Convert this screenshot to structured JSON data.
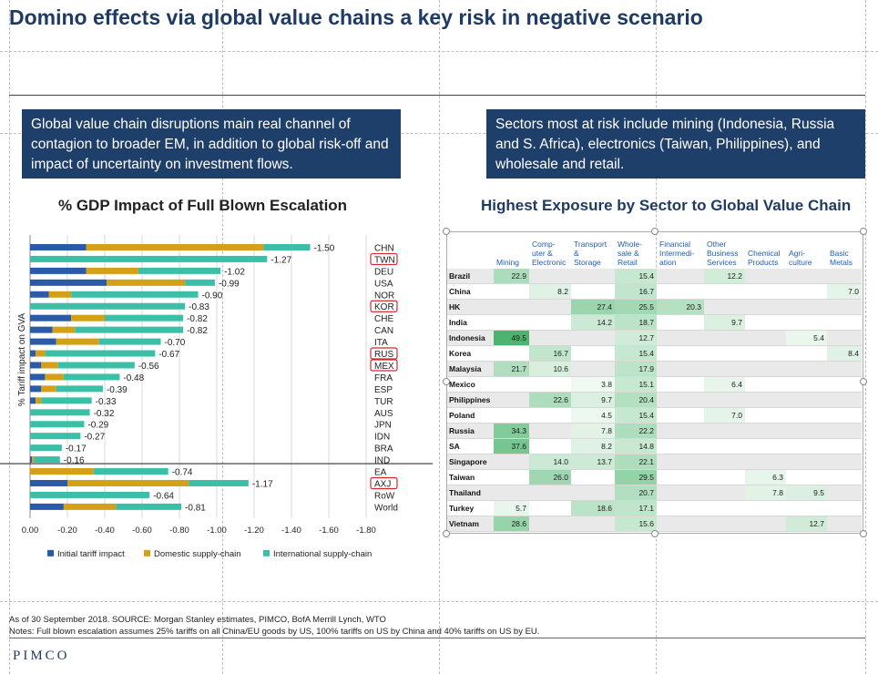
{
  "page_title": "Domino effects via global value chains a key risk in negative scenario",
  "callouts": {
    "left": "Global value chain disruptions main real channel of contagion to broader EM, in addition to global risk-off and impact of uncertainty on investment flows.",
    "right": "Sectors most at risk include mining (Indonesia, Russia and S. Africa), electronics (Taiwan, Philippines), and wholesale and retail."
  },
  "colors": {
    "initial": "#2a5aa8",
    "domestic": "#d4a017",
    "international": "#3cbfa7",
    "highlight_box": "#d9262c"
  },
  "footnotes": {
    "line1": "As of 30 September 2018. SOURCE: Morgan Stanley estimates, PIMCO, BofA Merrill Lynch, WTO",
    "line2": "Notes: Full blown escalation assumes 25% tariffs on all China/EU goods by US, 100% tariffs on US by China and 40% tariffs on US by EU."
  },
  "logo_text": "PIMCO",
  "chart_data": [
    {
      "type": "bar",
      "orientation": "horizontal",
      "stacked": true,
      "title": "% GDP Impact of Full Blown Escalation",
      "ylabel": "% Tariff impact on GVA",
      "xlim": [
        0,
        -1.8
      ],
      "x_ticks": [
        "0.00",
        "-0.20",
        "-0.40",
        "-0.60",
        "-0.80",
        "-1.00",
        "-1.20",
        "-1.40",
        "-1.60",
        "-1.80"
      ],
      "grid": true,
      "legend_position": "bottom",
      "categories": [
        "CHN",
        "TWN",
        "DEU",
        "USA",
        "NOR",
        "KOR",
        "CHE",
        "CAN",
        "ITA",
        "RUS",
        "MEX",
        "FRA",
        "ESP",
        "TUR",
        "AUS",
        "JPN",
        "IDN",
        "BRA",
        "IND",
        "EA",
        "AXJ",
        "RoW",
        "World"
      ],
      "highlighted_categories": [
        "TWN",
        "KOR",
        "RUS",
        "MEX",
        "AXJ"
      ],
      "series": [
        {
          "name": "Initial tariff impact",
          "values": [
            -0.3,
            0.0,
            -0.3,
            -0.41,
            -0.1,
            0.0,
            -0.22,
            -0.12,
            -0.14,
            -0.03,
            -0.06,
            -0.08,
            -0.06,
            -0.03,
            0.0,
            0.0,
            0.0,
            0.0,
            -0.01,
            0.0,
            -0.2,
            0.0,
            -0.18
          ]
        },
        {
          "name": "Domestic supply-chain",
          "values": [
            -0.95,
            0.0,
            -0.28,
            -0.42,
            -0.12,
            0.0,
            -0.18,
            -0.12,
            -0.23,
            -0.05,
            -0.09,
            -0.1,
            -0.08,
            -0.03,
            0.0,
            0.0,
            0.0,
            0.0,
            -0.01,
            -0.34,
            -0.65,
            0.0,
            -0.28
          ]
        },
        {
          "name": "International supply-chain",
          "values": [
            -0.25,
            -1.27,
            -0.44,
            -0.16,
            -0.68,
            -0.83,
            -0.42,
            -0.58,
            -0.33,
            -0.59,
            -0.41,
            -0.3,
            -0.25,
            -0.27,
            -0.32,
            -0.29,
            -0.27,
            -0.17,
            -0.14,
            -0.4,
            -0.32,
            -0.64,
            -0.35
          ]
        }
      ],
      "totals": [
        -1.5,
        -1.27,
        -1.02,
        -0.99,
        -0.9,
        -0.83,
        -0.82,
        -0.82,
        -0.7,
        -0.67,
        -0.56,
        -0.48,
        -0.39,
        -0.33,
        -0.32,
        -0.29,
        -0.27,
        -0.17,
        -0.16,
        -0.74,
        -1.17,
        -0.64,
        -0.81
      ],
      "total_labels": [
        "-1.50",
        "-1.27",
        "-1.02",
        "-0.99",
        "-0.90",
        "-0.83",
        "-0.82",
        "-0.82",
        "-0.70",
        "-0.67",
        "-0.56",
        "-0.48",
        "-0.39",
        "-0.33",
        "-0.32",
        "-0.29",
        "-0.27",
        "-0.17",
        "-0.16",
        "-0.74",
        "-1.17",
        "-0.64",
        "-0.81"
      ]
    },
    {
      "type": "table",
      "title": "Highest Exposure by Sector to Global Value Chain",
      "columns": [
        "Mining",
        "Comp-uter & Electronic",
        "Transport & Storage",
        "Whole-sale & Retail",
        "Financial Intermedi-ation",
        "Other Business Services",
        "Chemical Products",
        "Agri-culture",
        "Basic Metals"
      ],
      "column_lines": [
        [
          "Mining"
        ],
        [
          "Comp-",
          "uter &",
          "Electronic"
        ],
        [
          "Transport",
          "&",
          "Storage"
        ],
        [
          "Whole-",
          "sale &",
          "Retail"
        ],
        [
          "Financial",
          "Intermedi-",
          "ation"
        ],
        [
          "Other",
          "Business",
          "Services"
        ],
        [
          "Chemical",
          "Products"
        ],
        [
          "Agri-",
          "culture"
        ],
        [
          "Basic",
          "Metals"
        ]
      ],
      "rows": [
        {
          "country": "Brazil",
          "values": [
            "22.9",
            "",
            "",
            "15.4",
            "",
            "12.2",
            "",
            "",
            ""
          ]
        },
        {
          "country": "China",
          "values": [
            "",
            "8.2",
            "",
            "16.7",
            "",
            "",
            "",
            "",
            "7.0"
          ]
        },
        {
          "country": "HK",
          "values": [
            "",
            "",
            "27.4",
            "25.5",
            "20.3",
            "",
            "",
            "",
            ""
          ]
        },
        {
          "country": "India",
          "values": [
            "",
            "",
            "14.2",
            "18.7",
            "",
            "9.7",
            "",
            "",
            ""
          ]
        },
        {
          "country": "Indonesia",
          "values": [
            "49.5",
            "",
            "",
            "12.7",
            "",
            "",
            "",
            "5.4",
            ""
          ]
        },
        {
          "country": "Korea",
          "values": [
            "",
            "16.7",
            "",
            "15.4",
            "",
            "",
            "",
            "",
            "8.4"
          ]
        },
        {
          "country": "Malaysia",
          "values": [
            "21.7",
            "10.6",
            "",
            "17.9",
            "",
            "",
            "",
            "",
            ""
          ]
        },
        {
          "country": "Mexico",
          "values": [
            "",
            "",
            "3.8",
            "15.1",
            "",
            "6.4",
            "",
            "",
            ""
          ]
        },
        {
          "country": "Philippines",
          "values": [
            "",
            "22.6",
            "9.7",
            "20.4",
            "",
            "",
            "",
            "",
            ""
          ]
        },
        {
          "country": "Poland",
          "values": [
            "",
            "",
            "4.5",
            "15.4",
            "",
            "7.0",
            "",
            "",
            ""
          ]
        },
        {
          "country": "Russia",
          "values": [
            "34.3",
            "",
            "7.8",
            "22.2",
            "",
            "",
            "",
            "",
            ""
          ]
        },
        {
          "country": "SA",
          "values": [
            "37.6",
            "",
            "8.2",
            "14.8",
            "",
            "",
            "",
            "",
            ""
          ]
        },
        {
          "country": "Singapore",
          "values": [
            "",
            "14.0",
            "13.7",
            "22.1",
            "",
            "",
            "",
            "",
            ""
          ]
        },
        {
          "country": "Taiwan",
          "values": [
            "",
            "26.0",
            "",
            "29.5",
            "",
            "",
            "6.3",
            "",
            ""
          ]
        },
        {
          "country": "Thailand",
          "values": [
            "",
            "",
            "",
            "20.7",
            "",
            "",
            "7.8",
            "9.5",
            ""
          ]
        },
        {
          "country": "Turkey",
          "values": [
            "5.7",
            "",
            "18.6",
            "17.1",
            "",
            "",
            "",
            "",
            ""
          ]
        },
        {
          "country": "Vietnam",
          "values": [
            "28.6",
            "",
            "",
            "15.6",
            "",
            "",
            "",
            "12.7",
            ""
          ]
        }
      ]
    }
  ]
}
